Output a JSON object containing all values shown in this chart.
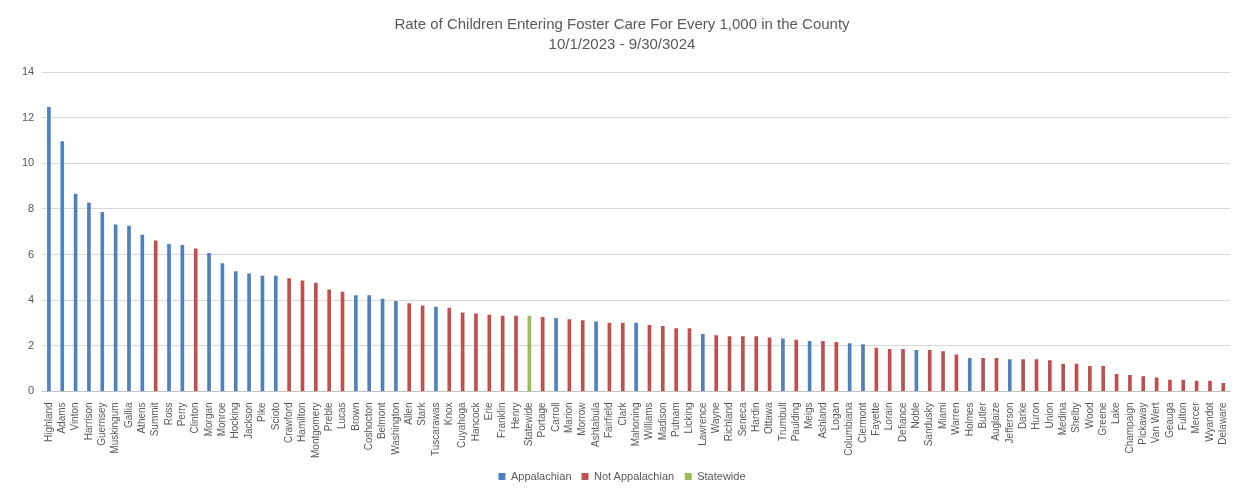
{
  "chart_data": {
    "type": "bar",
    "title": "Rate of Children Entering Foster Care For Every 1,000 in the County",
    "subtitle": "10/1/2023 - 9/30/3024",
    "categories": [
      "Highland",
      "Adams",
      "Vinton",
      "Harrison",
      "Guernsey",
      "Muskingum",
      "Gallia",
      "Athens",
      "Summit",
      "Ross",
      "Perry",
      "Clinton",
      "Morgan",
      "Monroe",
      "Hocking",
      "Jackson",
      "Pike",
      "Scioto",
      "Crawford",
      "Hamilton",
      "Montgomery",
      "Preble",
      "Lucas",
      "Brown",
      "Coshocton",
      "Belmont",
      "Washington",
      "Allen",
      "Stark",
      "Tuscarawas",
      "Knox",
      "Cuyahoga",
      "Hancock",
      "Erie",
      "Franklin",
      "Henry",
      "Statewide",
      "Portage",
      "Carroll",
      "Marion",
      "Morrow",
      "Ashtabula",
      "Fairfield",
      "Clark",
      "Mahoning",
      "Williams",
      "Madison",
      "Putnam",
      "Licking",
      "Lawrence",
      "Wayne",
      "Richland",
      "Seneca",
      "Hardin",
      "Ottawa",
      "Trumbull",
      "Paulding",
      "Meigs",
      "Ashland",
      "Logan",
      "Columbiana",
      "Clermont",
      "Fayette",
      "Lorain",
      "Defiance",
      "Noble",
      "Sandusky",
      "Miami",
      "Warren",
      "Holmes",
      "Butler",
      "Auglaize",
      "Jefferson",
      "Darke",
      "Huron",
      "Union",
      "Medina",
      "Shelby",
      "Wood",
      "Greene",
      "Lake",
      "Champaign",
      "Pickaway",
      "Van Wert",
      "Geauga",
      "Fulton",
      "Mercer",
      "Wyandot",
      "Delaware"
    ],
    "series": [
      {
        "name": "Appalachian",
        "color": "#4f81bd",
        "values": [
          12.45,
          10.95,
          8.65,
          8.25,
          7.85,
          7.3,
          7.25,
          6.85,
          null,
          6.45,
          6.4,
          null,
          6.05,
          5.6,
          5.25,
          5.15,
          5.05,
          5.05,
          null,
          null,
          null,
          null,
          null,
          4.2,
          4.2,
          4.05,
          3.95,
          null,
          null,
          3.7,
          null,
          null,
          null,
          null,
          null,
          null,
          null,
          null,
          3.2,
          null,
          null,
          3.05,
          null,
          null,
          3.0,
          null,
          null,
          null,
          null,
          2.5,
          null,
          null,
          null,
          null,
          null,
          2.3,
          null,
          2.2,
          null,
          null,
          2.1,
          2.05,
          null,
          null,
          null,
          1.8,
          null,
          null,
          null,
          1.45,
          null,
          null,
          1.4,
          null,
          null,
          null,
          null,
          null,
          null,
          null,
          null,
          null,
          null,
          null,
          null,
          null,
          null,
          null,
          null
        ]
      },
      {
        "name": "Not Appalachian",
        "color": "#c0504d",
        "values": [
          null,
          null,
          null,
          null,
          null,
          null,
          null,
          null,
          6.6,
          null,
          null,
          6.25,
          null,
          null,
          null,
          null,
          null,
          null,
          4.95,
          4.85,
          4.75,
          4.45,
          4.35,
          null,
          null,
          null,
          null,
          3.85,
          3.75,
          null,
          3.65,
          3.45,
          3.4,
          3.35,
          3.3,
          3.3,
          null,
          3.25,
          null,
          3.15,
          3.1,
          null,
          3.0,
          3.0,
          null,
          2.9,
          2.85,
          2.75,
          2.75,
          null,
          2.45,
          2.4,
          2.4,
          2.4,
          2.35,
          null,
          2.25,
          null,
          2.2,
          2.15,
          null,
          null,
          1.9,
          1.85,
          1.85,
          null,
          1.8,
          1.75,
          1.6,
          null,
          1.45,
          1.45,
          null,
          1.4,
          1.4,
          1.35,
          1.2,
          1.2,
          1.1,
          1.1,
          0.75,
          0.7,
          0.65,
          0.6,
          0.5,
          0.5,
          0.45,
          0.45,
          0.35
        ]
      },
      {
        "name": "Statewide",
        "color": "#9bbb59",
        "values": [
          null,
          null,
          null,
          null,
          null,
          null,
          null,
          null,
          null,
          null,
          null,
          null,
          null,
          null,
          null,
          null,
          null,
          null,
          null,
          null,
          null,
          null,
          null,
          null,
          null,
          null,
          null,
          null,
          null,
          null,
          null,
          null,
          null,
          null,
          null,
          null,
          3.3,
          null,
          null,
          null,
          null,
          null,
          null,
          null,
          null,
          null,
          null,
          null,
          null,
          null,
          null,
          null,
          null,
          null,
          null,
          null,
          null,
          null,
          null,
          null,
          null,
          null,
          null,
          null,
          null,
          null,
          null,
          null,
          null,
          null,
          null,
          null,
          null,
          null,
          null,
          null,
          null,
          null,
          null,
          null,
          null,
          null,
          null,
          null,
          null,
          null,
          null,
          null,
          null
        ]
      }
    ],
    "ylim": [
      0,
      14
    ],
    "yticks": [
      0,
      2,
      4,
      6,
      8,
      10,
      12,
      14
    ],
    "grid": "y",
    "legend": "bottom"
  }
}
